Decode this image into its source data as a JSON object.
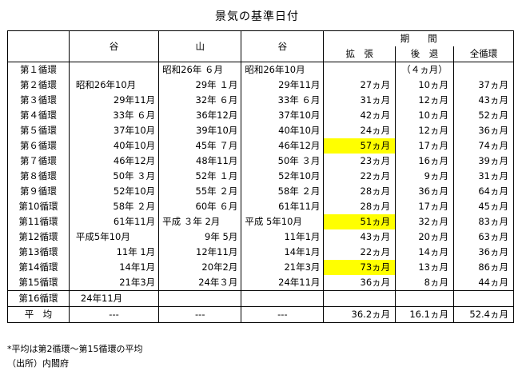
{
  "title": "景気の基準日付",
  "headers": {
    "trough1": "谷",
    "peak": "山",
    "trough2": "谷",
    "period": "期　　間",
    "expansion": "拡　張",
    "contraction": "後　退",
    "full": "全循環"
  },
  "rows": [
    {
      "cycle": "第１循環",
      "trough1": "",
      "peak": "昭和26年 ６月",
      "trough2": "昭和26年10月",
      "ext": "",
      "con": "（４ヵ月）",
      "tot": ""
    },
    {
      "cycle": "第２循環",
      "trough1": "昭和26年10月",
      "peak": "29年 １月",
      "trough2": "29年11月",
      "ext": "27ヵ月",
      "con": "10ヵ月",
      "tot": "37ヵ月"
    },
    {
      "cycle": "第３循環",
      "trough1": "29年11月",
      "peak": "32年 ６月",
      "trough2": "33年 ６月",
      "ext": "31ヵ月",
      "con": "12ヵ月",
      "tot": "43ヵ月"
    },
    {
      "cycle": "第４循環",
      "trough1": "33年 ６月",
      "peak": "36年12月",
      "trough2": "37年10月",
      "ext": "42ヵ月",
      "con": "10ヵ月",
      "tot": "52ヵ月"
    },
    {
      "cycle": "第５循環",
      "trough1": "37年10月",
      "peak": "39年10月",
      "trough2": "40年10月",
      "ext": "24ヵ月",
      "con": "12ヵ月",
      "tot": "36ヵ月"
    },
    {
      "cycle": "第６循環",
      "trough1": "40年10月",
      "peak": "45年 ７月",
      "trough2": "46年12月",
      "ext": "57ヵ月",
      "con": "17ヵ月",
      "tot": "74ヵ月",
      "highlight": true
    },
    {
      "cycle": "第７循環",
      "trough1": "46年12月",
      "peak": "48年11月",
      "trough2": "50年 ３月",
      "ext": "23ヵ月",
      "con": "16ヵ月",
      "tot": "39ヵ月"
    },
    {
      "cycle": "第８循環",
      "trough1": "50年 ３月",
      "peak": "52年 １月",
      "trough2": "52年10月",
      "ext": "22ヵ月",
      "con": "9ヵ月",
      "tot": "31ヵ月"
    },
    {
      "cycle": "第９循環",
      "trough1": "52年10月",
      "peak": "55年 ２月",
      "trough2": "58年 ２月",
      "ext": "28ヵ月",
      "con": "36ヵ月",
      "tot": "64ヵ月"
    },
    {
      "cycle": "第10循環",
      "trough1": "58年 ２月",
      "peak": "60年 ６月",
      "trough2": "61年11月",
      "ext": "28ヵ月",
      "con": "17ヵ月",
      "tot": "45ヵ月"
    },
    {
      "cycle": "第11循環",
      "trough1": "61年11月",
      "peak": "平成 ３年 2月",
      "trough2": "平成 5年10月",
      "ext": "51ヵ月",
      "con": "32ヵ月",
      "tot": "83ヵ月",
      "highlight": true
    },
    {
      "cycle": "第12循環",
      "trough1": "平成5年10月",
      "peak": "9年 5月",
      "trough2": "11年1月",
      "ext": "43ヵ月",
      "con": "20ヵ月",
      "tot": "63ヵ月"
    },
    {
      "cycle": "第13循環",
      "trough1": "11年 1月",
      "peak": "12年11月",
      "trough2": "14年1月",
      "ext": "22ヵ月",
      "con": "14ヵ月",
      "tot": "36ヵ月"
    },
    {
      "cycle": "第14循環",
      "trough1": "14年1月",
      "peak": "20年2月",
      "trough2": "21年3月",
      "ext": "73ヵ月",
      "con": "13ヵ月",
      "tot": "86ヵ月",
      "highlight": true
    },
    {
      "cycle": "第15循環",
      "trough1": "21年3月",
      "peak": "24年３月",
      "trough2": "24年11月",
      "ext": "36ヵ月",
      "con": "8ヵ月",
      "tot": "44ヵ月"
    }
  ],
  "row16": {
    "cycle": "第16循環",
    "trough1": "24年11月"
  },
  "average": {
    "label": "平　均",
    "trough1": "---",
    "peak": "---",
    "trough2": "---",
    "ext": "36.2ヵ月",
    "con": "16.1ヵ月",
    "tot": "52.4ヵ月"
  },
  "notes": {
    "note1": "*平均は第2循環～第15循環の平均",
    "note2": "（出所）内閣府"
  }
}
